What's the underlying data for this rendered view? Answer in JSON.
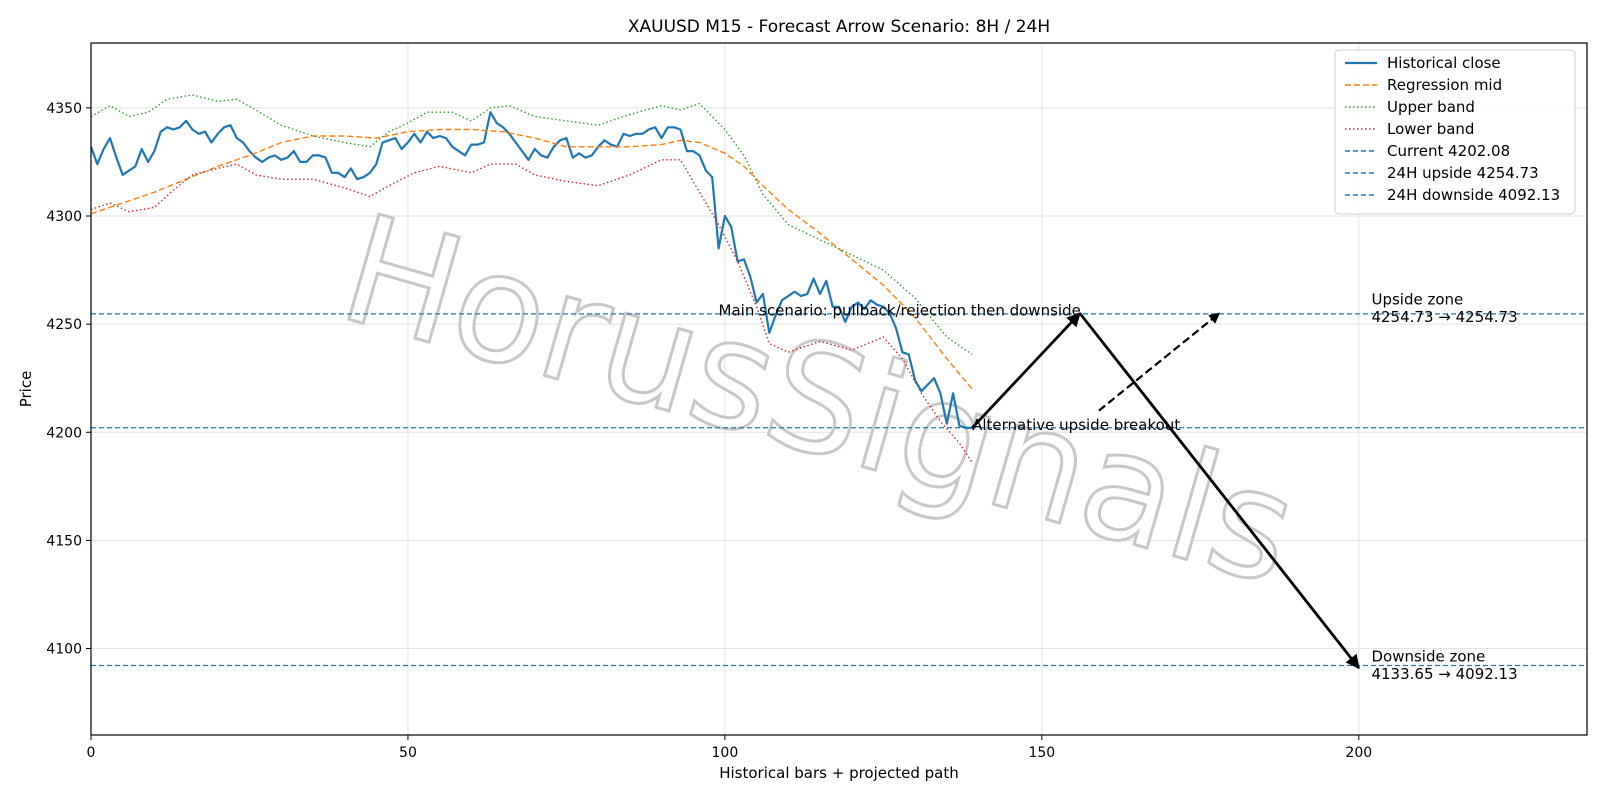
{
  "chart_data": {
    "type": "line",
    "title": "XAUUSD M15 - Forecast Arrow Scenario: 8H / 24H",
    "xlabel": "Historical bars + projected path",
    "ylabel": "Price",
    "xlim": [
      0,
      236
    ],
    "ylim": [
      4060,
      4380
    ],
    "xticks": [
      0,
      50,
      100,
      150,
      200
    ],
    "yticks": [
      4100,
      4150,
      4200,
      4250,
      4300,
      4350
    ],
    "grid": true,
    "legend_position": "top-right",
    "watermark": "HorusSignals",
    "series": [
      {
        "name": "Historical close",
        "color": "#1f77b4",
        "style": "solid",
        "points": [
          [
            0,
            4332
          ],
          [
            1,
            4324
          ],
          [
            2,
            4331
          ],
          [
            3,
            4336
          ],
          [
            4,
            4327
          ],
          [
            5,
            4319
          ],
          [
            6,
            4321
          ],
          [
            7,
            4323
          ],
          [
            8,
            4331
          ],
          [
            9,
            4325
          ],
          [
            10,
            4330
          ],
          [
            11,
            4339
          ],
          [
            12,
            4341
          ],
          [
            13,
            4340
          ],
          [
            14,
            4341
          ],
          [
            15,
            4344
          ],
          [
            16,
            4340
          ],
          [
            17,
            4338
          ],
          [
            18,
            4339
          ],
          [
            19,
            4334
          ],
          [
            20,
            4338
          ],
          [
            21,
            4341
          ],
          [
            22,
            4342
          ],
          [
            23,
            4336
          ],
          [
            24,
            4334
          ],
          [
            25,
            4330
          ],
          [
            26,
            4327
          ],
          [
            27,
            4325
          ],
          [
            28,
            4327
          ],
          [
            29,
            4328
          ],
          [
            30,
            4326
          ],
          [
            31,
            4327
          ],
          [
            32,
            4330
          ],
          [
            33,
            4325
          ],
          [
            34,
            4325
          ],
          [
            35,
            4328
          ],
          [
            36,
            4328
          ],
          [
            37,
            4327
          ],
          [
            38,
            4320
          ],
          [
            39,
            4320
          ],
          [
            40,
            4318
          ],
          [
            41,
            4322
          ],
          [
            42,
            4317
          ],
          [
            43,
            4318
          ],
          [
            44,
            4320
          ],
          [
            45,
            4324
          ],
          [
            46,
            4334
          ],
          [
            47,
            4335
          ],
          [
            48,
            4336
          ],
          [
            49,
            4331
          ],
          [
            50,
            4334
          ],
          [
            51,
            4338
          ],
          [
            52,
            4334
          ],
          [
            53,
            4339
          ],
          [
            54,
            4336
          ],
          [
            55,
            4337
          ],
          [
            56,
            4336
          ],
          [
            57,
            4332
          ],
          [
            58,
            4330
          ],
          [
            59,
            4328
          ],
          [
            60,
            4333
          ],
          [
            61,
            4333
          ],
          [
            62,
            4334
          ],
          [
            63,
            4348
          ],
          [
            64,
            4343
          ],
          [
            65,
            4341
          ],
          [
            66,
            4338
          ],
          [
            67,
            4334
          ],
          [
            68,
            4330
          ],
          [
            69,
            4326
          ],
          [
            70,
            4331
          ],
          [
            71,
            4328
          ],
          [
            72,
            4327
          ],
          [
            73,
            4332
          ],
          [
            74,
            4335
          ],
          [
            75,
            4336
          ],
          [
            76,
            4327
          ],
          [
            77,
            4329
          ],
          [
            78,
            4327
          ],
          [
            79,
            4328
          ],
          [
            80,
            4332
          ],
          [
            81,
            4335
          ],
          [
            82,
            4333
          ],
          [
            83,
            4332
          ],
          [
            84,
            4338
          ],
          [
            85,
            4337
          ],
          [
            86,
            4338
          ],
          [
            87,
            4338
          ],
          [
            88,
            4340
          ],
          [
            89,
            4341
          ],
          [
            90,
            4336
          ],
          [
            91,
            4341
          ],
          [
            92,
            4341
          ],
          [
            93,
            4340
          ],
          [
            94,
            4330
          ],
          [
            95,
            4330
          ],
          [
            96,
            4328
          ],
          [
            97,
            4321
          ],
          [
            98,
            4318
          ],
          [
            99,
            4285
          ],
          [
            100,
            4300
          ],
          [
            101,
            4295
          ],
          [
            102,
            4279
          ],
          [
            103,
            4280
          ],
          [
            104,
            4272
          ],
          [
            105,
            4260
          ],
          [
            106,
            4264
          ],
          [
            107,
            4246
          ],
          [
            108,
            4254
          ],
          [
            109,
            4261
          ],
          [
            110,
            4263
          ],
          [
            111,
            4265
          ],
          [
            112,
            4263
          ],
          [
            113,
            4264
          ],
          [
            114,
            4271
          ],
          [
            115,
            4264
          ],
          [
            116,
            4270
          ],
          [
            117,
            4258
          ],
          [
            118,
            4258
          ],
          [
            119,
            4251
          ],
          [
            120,
            4258
          ],
          [
            121,
            4260
          ],
          [
            122,
            4257
          ],
          [
            123,
            4261
          ],
          [
            124,
            4259
          ],
          [
            125,
            4258
          ],
          [
            126,
            4255
          ],
          [
            127,
            4248
          ],
          [
            128,
            4237
          ],
          [
            129,
            4236
          ],
          [
            130,
            4224
          ],
          [
            131,
            4219
          ],
          [
            132,
            4222
          ],
          [
            133,
            4225
          ],
          [
            134,
            4218
          ],
          [
            135,
            4204
          ],
          [
            136,
            4218
          ],
          [
            137,
            4203
          ],
          [
            138,
            4202
          ],
          [
            139,
            4202
          ]
        ]
      },
      {
        "name": "Regression mid",
        "color": "#ff7f0e",
        "style": "dashed",
        "points": [
          [
            0,
            4301
          ],
          [
            5,
            4306
          ],
          [
            10,
            4311
          ],
          [
            15,
            4317
          ],
          [
            20,
            4323
          ],
          [
            25,
            4328
          ],
          [
            30,
            4334
          ],
          [
            35,
            4337
          ],
          [
            40,
            4337
          ],
          [
            45,
            4336
          ],
          [
            50,
            4339
          ],
          [
            55,
            4340
          ],
          [
            60,
            4340
          ],
          [
            65,
            4339
          ],
          [
            70,
            4336
          ],
          [
            75,
            4332
          ],
          [
            80,
            4332
          ],
          [
            85,
            4332
          ],
          [
            90,
            4333
          ],
          [
            93,
            4335
          ],
          [
            96,
            4334
          ],
          [
            100,
            4329
          ],
          [
            103,
            4323
          ],
          [
            106,
            4314
          ],
          [
            110,
            4303
          ],
          [
            115,
            4292
          ],
          [
            120,
            4280
          ],
          [
            125,
            4268
          ],
          [
            130,
            4253
          ],
          [
            135,
            4234
          ],
          [
            139,
            4220
          ]
        ]
      },
      {
        "name": "Upper band",
        "color": "#2ca02c",
        "style": "dotted",
        "points": [
          [
            0,
            4346
          ],
          [
            3,
            4351
          ],
          [
            6,
            4346
          ],
          [
            9,
            4348
          ],
          [
            12,
            4354
          ],
          [
            16,
            4356
          ],
          [
            20,
            4353
          ],
          [
            23,
            4354
          ],
          [
            26,
            4349
          ],
          [
            30,
            4342
          ],
          [
            35,
            4337
          ],
          [
            40,
            4334
          ],
          [
            44,
            4332
          ],
          [
            47,
            4339
          ],
          [
            50,
            4343
          ],
          [
            53,
            4348
          ],
          [
            57,
            4348
          ],
          [
            60,
            4344
          ],
          [
            63,
            4350
          ],
          [
            66,
            4351
          ],
          [
            70,
            4346
          ],
          [
            75,
            4344
          ],
          [
            80,
            4342
          ],
          [
            85,
            4347
          ],
          [
            90,
            4351
          ],
          [
            93,
            4349
          ],
          [
            96,
            4352
          ],
          [
            100,
            4340
          ],
          [
            103,
            4328
          ],
          [
            106,
            4310
          ],
          [
            110,
            4296
          ],
          [
            115,
            4289
          ],
          [
            120,
            4282
          ],
          [
            125,
            4275
          ],
          [
            130,
            4262
          ],
          [
            135,
            4244
          ],
          [
            139,
            4236
          ]
        ]
      },
      {
        "name": "Lower band",
        "color": "#d62728",
        "style": "dotted",
        "points": [
          [
            0,
            4303
          ],
          [
            3,
            4306
          ],
          [
            6,
            4302
          ],
          [
            10,
            4304
          ],
          [
            13,
            4312
          ],
          [
            16,
            4319
          ],
          [
            20,
            4322
          ],
          [
            23,
            4324
          ],
          [
            26,
            4319
          ],
          [
            30,
            4317
          ],
          [
            35,
            4317
          ],
          [
            40,
            4313
          ],
          [
            44,
            4309
          ],
          [
            47,
            4314
          ],
          [
            51,
            4320
          ],
          [
            55,
            4323
          ],
          [
            60,
            4320
          ],
          [
            63,
            4324
          ],
          [
            67,
            4324
          ],
          [
            70,
            4319
          ],
          [
            75,
            4316
          ],
          [
            80,
            4314
          ],
          [
            85,
            4319
          ],
          [
            90,
            4326
          ],
          [
            93,
            4326
          ],
          [
            96,
            4311
          ],
          [
            99,
            4296
          ],
          [
            102,
            4279
          ],
          [
            105,
            4258
          ],
          [
            107,
            4241
          ],
          [
            110,
            4237
          ],
          [
            115,
            4242
          ],
          [
            120,
            4238
          ],
          [
            125,
            4244
          ],
          [
            128,
            4234
          ],
          [
            131,
            4218
          ],
          [
            134,
            4205
          ],
          [
            137,
            4195
          ],
          [
            139,
            4186
          ]
        ]
      }
    ],
    "horizontal_lines": [
      {
        "name": "Current 4202.08",
        "value": 4202.08,
        "color": "#1f77b4",
        "style": "dashed"
      },
      {
        "name": "24H upside 4254.73",
        "value": 4254.73,
        "color": "#1f77b4",
        "style": "dashed"
      },
      {
        "name": "24H downside 4092.13",
        "value": 4092.13,
        "color": "#1f77b4",
        "style": "dashed"
      }
    ],
    "arrows": [
      {
        "from": [
          139,
          4202
        ],
        "to": [
          156,
          4255
        ],
        "style": "solid",
        "color": "#000000"
      },
      {
        "from": [
          156,
          4255
        ],
        "to": [
          200,
          4091
        ],
        "style": "solid",
        "color": "#000000"
      },
      {
        "from": [
          159,
          4210
        ],
        "to": [
          178,
          4255
        ],
        "style": "dashed",
        "color": "#000000"
      }
    ],
    "annotations": [
      {
        "id": "main",
        "text": "Main scenario: pullback/rejection then downside",
        "x": 99,
        "y": 4254,
        "anchor": "start"
      },
      {
        "id": "alt",
        "text": "Alternative upside breakout",
        "x": 139,
        "y": 4201,
        "anchor": "start"
      },
      {
        "id": "upzone1",
        "text": "Upside zone",
        "x": 202,
        "y": 4259,
        "anchor": "start"
      },
      {
        "id": "upzone2",
        "text": "4254.73 → 4254.73",
        "x": 202,
        "y": 4251,
        "anchor": "start"
      },
      {
        "id": "downzone1",
        "text": "Downside zone",
        "x": 202,
        "y": 4094,
        "anchor": "start"
      },
      {
        "id": "downzone2",
        "text": "4133.65 → 4092.13",
        "x": 202,
        "y": 4086,
        "anchor": "start"
      }
    ]
  }
}
